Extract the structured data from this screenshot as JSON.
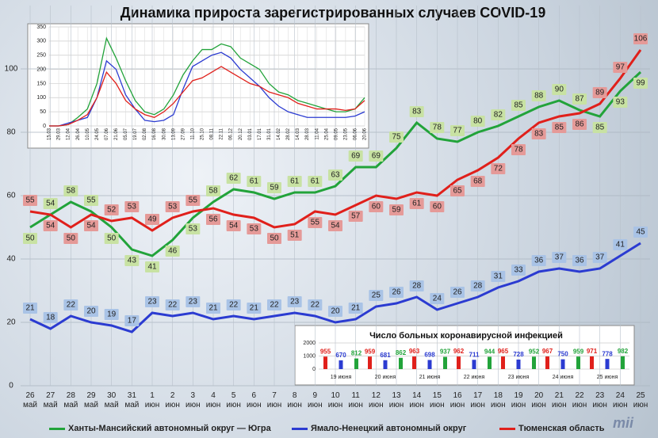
{
  "title": "Динамика прироста зарегистрированных случаев COVID-19",
  "logo": "mii",
  "chart_data": [
    {
      "type": "line",
      "categories": [
        "26 май",
        "27 май",
        "28 май",
        "29 май",
        "30 май",
        "31 май",
        "1 июн",
        "2 июн",
        "3 июн",
        "4 июн",
        "5 июн",
        "6 июн",
        "7 июн",
        "8 июн",
        "9 июн",
        "10 июн",
        "11 июн",
        "12 июн",
        "13 июн",
        "14 июн",
        "15 июн",
        "16 июн",
        "17 июн",
        "18 июн",
        "19 июн",
        "20 июн",
        "21 июн",
        "22 июн",
        "23 июн",
        "24 июн",
        "25 июн"
      ],
      "series": [
        {
          "name": "Ханты-Мансийский автономный округ — Югра",
          "color": "#22a33a",
          "label_color": "#c8e2a3",
          "values": [
            50,
            54,
            58,
            55,
            50,
            43,
            41,
            46,
            53,
            58,
            62,
            61,
            59,
            61,
            61,
            63,
            69,
            69,
            75,
            83,
            78,
            77,
            80,
            82,
            85,
            88,
            90,
            87,
            85,
            93,
            99
          ]
        },
        {
          "name": "Ямало-Ненецкий автономный округ",
          "color": "#2b3bd1",
          "label_color": "#a9c3e6",
          "values": [
            21,
            18,
            22,
            20,
            19,
            17,
            23,
            22,
            23,
            21,
            22,
            21,
            22,
            23,
            22,
            20,
            21,
            25,
            26,
            28,
            24,
            26,
            28,
            31,
            33,
            36,
            37,
            36,
            37,
            41,
            45
          ]
        },
        {
          "name": "Тюменская область",
          "color": "#e0201b",
          "label_color": "#e59a98",
          "values": [
            55,
            54,
            50,
            54,
            52,
            53,
            49,
            53,
            55,
            56,
            54,
            53,
            50,
            51,
            55,
            54,
            57,
            60,
            59,
            61,
            60,
            65,
            68,
            72,
            78,
            83,
            85,
            86,
            89,
            97,
            106
          ]
        }
      ],
      "ylim": [
        0,
        120
      ],
      "yticks": [
        0,
        20,
        40,
        60,
        80,
        100
      ],
      "grid": true
    },
    {
      "type": "line",
      "categories": [
        "15.03",
        "29.03",
        "12.04",
        "26.04",
        "10.05",
        "24.05",
        "07.06",
        "21.06",
        "05.07",
        "19.07",
        "02.08",
        "16.08",
        "30.08",
        "13.09",
        "27.09",
        "11.10",
        "25.10",
        "08.11",
        "22.11",
        "06.12",
        "20.12",
        "03.01",
        "17.01",
        "31.01",
        "14.02",
        "28.02",
        "14.03",
        "28.03",
        "11.04",
        "25.04",
        "09.05",
        "23.05",
        "06.06",
        "20.06"
      ],
      "series": [
        {
          "color": "#22a33a",
          "values": [
            0,
            0,
            5,
            30,
            60,
            150,
            310,
            240,
            160,
            90,
            50,
            40,
            60,
            110,
            180,
            230,
            270,
            270,
            290,
            280,
            240,
            220,
            200,
            150,
            120,
            110,
            90,
            80,
            70,
            60,
            50,
            50,
            60,
            100
          ]
        },
        {
          "color": "#2b3bd1",
          "values": [
            0,
            0,
            10,
            20,
            30,
            100,
            230,
            200,
            110,
            60,
            20,
            15,
            20,
            40,
            130,
            210,
            230,
            250,
            260,
            240,
            200,
            170,
            140,
            100,
            70,
            50,
            40,
            30,
            30,
            30,
            30,
            30,
            35,
            50
          ]
        },
        {
          "color": "#e0201b",
          "values": [
            0,
            0,
            5,
            20,
            40,
            100,
            190,
            150,
            90,
            60,
            40,
            30,
            50,
            80,
            120,
            160,
            170,
            190,
            210,
            190,
            170,
            150,
            140,
            120,
            110,
            100,
            80,
            70,
            60,
            60,
            60,
            55,
            60,
            90
          ]
        }
      ],
      "ylim": [
        0,
        350
      ],
      "yticks": [
        0,
        50,
        100,
        150,
        200,
        250,
        300,
        350
      ],
      "grid": true
    },
    {
      "type": "bar",
      "title": "Число больных коронавирусной инфекцией",
      "categories": [
        "19 июня",
        "20 июня",
        "21 июня",
        "22 июня",
        "23 июня",
        "24 июня",
        "25 июня"
      ],
      "series": [
        {
          "color": "#e0201b",
          "values": [
            955,
            959,
            963,
            962,
            965,
            967,
            971
          ]
        },
        {
          "color": "#2b3bd1",
          "values": [
            670,
            681,
            698,
            711,
            728,
            750,
            778
          ]
        },
        {
          "color": "#22a33a",
          "values": [
            812,
            862,
            937,
            944,
            952,
            959,
            982
          ]
        }
      ],
      "ylim": [
        0,
        2000
      ],
      "yticks": [
        0,
        1000,
        2000
      ],
      "grid": true
    }
  ]
}
